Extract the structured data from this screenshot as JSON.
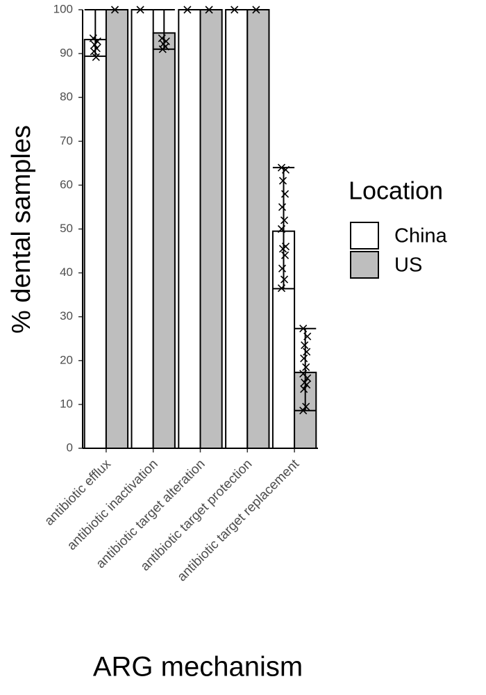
{
  "chart_data": {
    "type": "bar",
    "x_label": "ARG mechanism",
    "y_label": "% dental samples",
    "legend_title": "Location",
    "categories": [
      "antibiotic efflux",
      "antibiotic inactivation",
      "antibiotic target alteration",
      "antibiotic target protection",
      "antibiotic target replacement"
    ],
    "series": [
      {
        "name": "China",
        "color": "#ffffff",
        "values": [
          93.2,
          100,
          100,
          100,
          49.5
        ],
        "error_low": [
          89.4,
          null,
          null,
          null,
          36.4
        ],
        "error_high": [
          100,
          null,
          null,
          null,
          64
        ],
        "points": [
          [
            93.5,
            92.8,
            92,
            91.2,
            90.5,
            89.2
          ],
          [
            100
          ],
          [
            100
          ],
          [
            100
          ],
          [
            64,
            63.5,
            61,
            58,
            55,
            52,
            50,
            46,
            45.5,
            44,
            41,
            38.5,
            36.5
          ]
        ]
      },
      {
        "name": "US",
        "color": "#bebebe",
        "values": [
          100,
          94.7,
          100,
          100,
          17.3
        ],
        "error_low": [
          null,
          91,
          null,
          null,
          8.6
        ],
        "error_high": [
          null,
          100,
          null,
          null,
          27.3
        ],
        "points": [
          [
            100
          ],
          [
            93.5,
            92.8,
            92.2,
            91.6,
            91
          ],
          [
            100
          ],
          [
            100
          ],
          [
            27.3,
            25.5,
            23.5,
            22,
            20.5,
            18.5,
            17,
            16,
            15,
            14.5,
            13.5,
            9.5,
            8.6
          ]
        ]
      }
    ],
    "ylim": [
      0,
      100
    ],
    "yticks": [
      0,
      10,
      20,
      30,
      40,
      50,
      60,
      70,
      80,
      90,
      100
    ],
    "grid": false
  }
}
